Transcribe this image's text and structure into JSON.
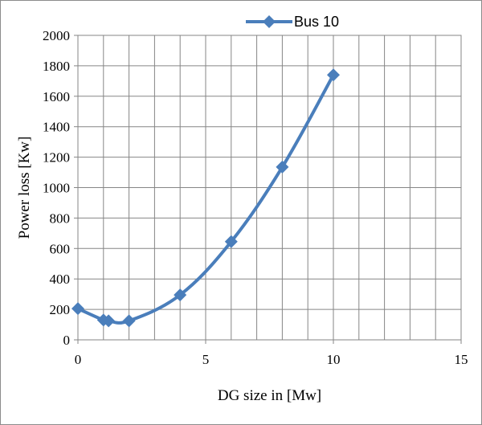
{
  "chart_data": {
    "type": "line",
    "title": "",
    "xlabel": "DG size in [Mw]",
    "ylabel": "Power loss [Kw]",
    "xlim": [
      0,
      15
    ],
    "ylim": [
      0,
      2000
    ],
    "x_ticks": [
      "0",
      "5",
      "10",
      "15"
    ],
    "y_ticks": [
      "0",
      "200",
      "400",
      "600",
      "800",
      "1000",
      "1200",
      "1400",
      "1600",
      "1800",
      "2000"
    ],
    "grid": true,
    "legend_position": "top",
    "series": [
      {
        "name": "Bus 10",
        "color": "#4a7ebb",
        "marker": "diamond",
        "smooth": true,
        "x": [
          0,
          1,
          1.2,
          2,
          4,
          6,
          8,
          10
        ],
        "y": [
          205,
          130,
          125,
          125,
          295,
          645,
          1135,
          1740
        ]
      }
    ]
  }
}
